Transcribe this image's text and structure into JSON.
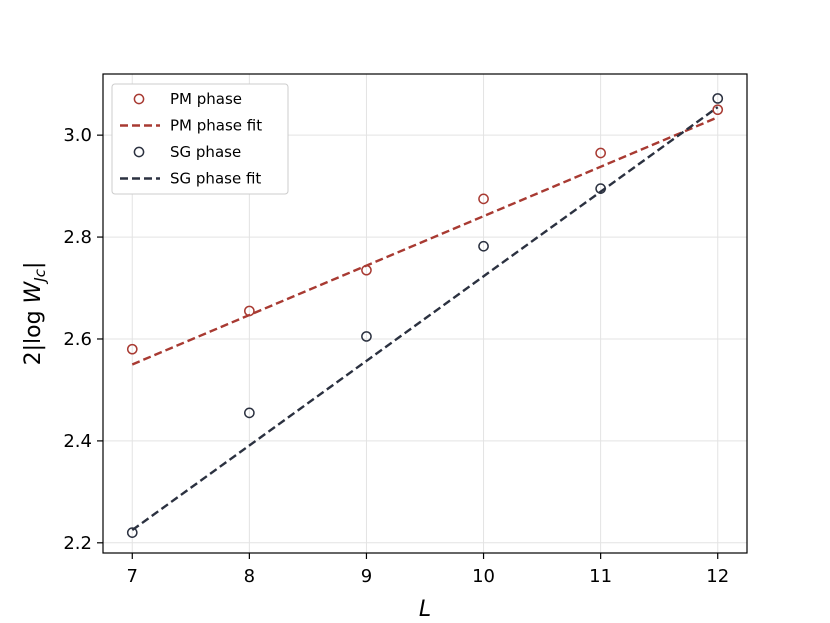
{
  "chart_data": {
    "type": "scatter",
    "title": "",
    "xlabel": "L",
    "ylabel": "2|log W_Jc|",
    "ylabel_parts": {
      "prefix": "2|log ",
      "var": "W",
      "sub": "Jc",
      "suffix": "|"
    },
    "xlim": [
      6.75,
      12.25
    ],
    "ylim": [
      2.18,
      3.12
    ],
    "xticks": [
      7,
      8,
      9,
      10,
      11,
      12
    ],
    "xtick_labels": [
      "7",
      "8",
      "9",
      "10",
      "11",
      "12"
    ],
    "yticks": [
      2.2,
      2.4,
      2.6,
      2.8,
      3.0
    ],
    "ytick_labels": [
      "2.2",
      "2.4",
      "2.6",
      "2.8",
      "3.0"
    ],
    "grid": true,
    "legend_position": "top-left",
    "series": [
      {
        "name": "PM phase",
        "kind": "points",
        "color": "#a83a32",
        "x": [
          7,
          8,
          9,
          10,
          11,
          12
        ],
        "y": [
          2.58,
          2.655,
          2.735,
          2.875,
          2.965,
          3.05
        ]
      },
      {
        "name": "PM phase fit",
        "kind": "line",
        "color": "#a83a32",
        "x": [
          7,
          12
        ],
        "y": [
          2.55,
          3.035
        ]
      },
      {
        "name": "SG phase",
        "kind": "points",
        "color": "#2b3140",
        "x": [
          7,
          8,
          9,
          10,
          11,
          12
        ],
        "y": [
          2.22,
          2.455,
          2.605,
          2.782,
          2.895,
          3.072
        ]
      },
      {
        "name": "SG phase fit",
        "kind": "line",
        "color": "#2b3140",
        "x": [
          7,
          12
        ],
        "y": [
          2.225,
          3.055
        ]
      }
    ]
  }
}
